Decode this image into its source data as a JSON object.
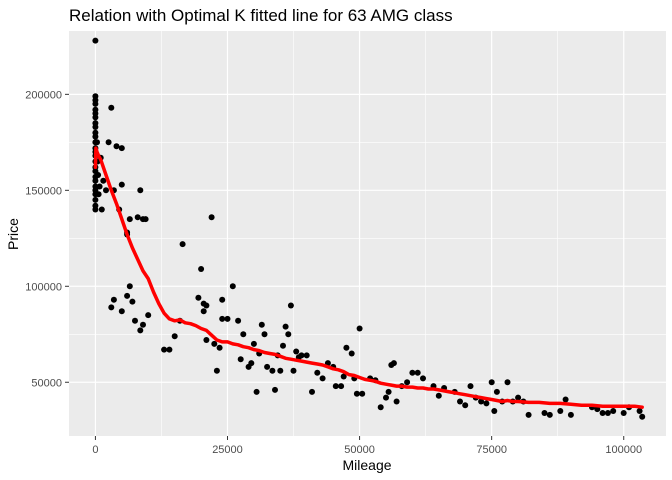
{
  "chart_data": {
    "type": "scatter",
    "title": "Relation with Optimal K fitted line for 63 AMG class",
    "xlabel": "Mileage",
    "ylabel": "Price",
    "xlim": [
      -5000,
      108000
    ],
    "ylim": [
      22000,
      233000
    ],
    "x_ticks": [
      0,
      25000,
      50000,
      75000,
      100000
    ],
    "x_tick_labels": [
      "0",
      "25000",
      "50000",
      "75000",
      "100000"
    ],
    "y_ticks": [
      50000,
      100000,
      150000,
      200000
    ],
    "y_tick_labels": [
      "50000",
      "100000",
      "150000",
      "200000"
    ],
    "grid": true,
    "legend": "none",
    "colors": {
      "panel_bg": "#ebebeb",
      "grid": "#ffffff",
      "points": "#000000",
      "fit_line": "#ff0000",
      "tick_text": "#4d4d4d",
      "tick_mark": "#333333"
    },
    "series": [
      {
        "type": "scatter",
        "points": [
          [
            0,
            228000
          ],
          [
            0,
            199000
          ],
          [
            0,
            197000
          ],
          [
            0,
            195000
          ],
          [
            0,
            192000
          ],
          [
            0,
            190000
          ],
          [
            0,
            188000
          ],
          [
            0,
            185000
          ],
          [
            0,
            183000
          ],
          [
            0,
            180000
          ],
          [
            0,
            178000
          ],
          [
            0,
            175000
          ],
          [
            0,
            172000
          ],
          [
            0,
            170000
          ],
          [
            0,
            168000
          ],
          [
            0,
            165000
          ],
          [
            0,
            162000
          ],
          [
            0,
            160000
          ],
          [
            0,
            157000
          ],
          [
            0,
            155000
          ],
          [
            0,
            152000
          ],
          [
            0,
            150000
          ],
          [
            0,
            148000
          ],
          [
            0,
            145000
          ],
          [
            0,
            142000
          ],
          [
            0,
            140000
          ],
          [
            300,
            175000
          ],
          [
            400,
            165000
          ],
          [
            500,
            158000
          ],
          [
            600,
            148000
          ],
          [
            800,
            152000
          ],
          [
            1000,
            167000
          ],
          [
            1200,
            140000
          ],
          [
            1500,
            155000
          ],
          [
            2000,
            150000
          ],
          [
            2500,
            175000
          ],
          [
            3000,
            193000
          ],
          [
            3500,
            150000
          ],
          [
            4000,
            173000
          ],
          [
            5000,
            172000
          ],
          [
            5000,
            153000
          ],
          [
            4500,
            140000
          ],
          [
            6000,
            128000
          ],
          [
            6000,
            127000
          ],
          [
            6500,
            135000
          ],
          [
            8000,
            136000
          ],
          [
            8500,
            150000
          ],
          [
            9000,
            135000
          ],
          [
            9500,
            135000
          ],
          [
            3000,
            89000
          ],
          [
            3500,
            93000
          ],
          [
            5000,
            87000
          ],
          [
            6000,
            95000
          ],
          [
            6500,
            100000
          ],
          [
            7000,
            92000
          ],
          [
            7500,
            82000
          ],
          [
            8500,
            77000
          ],
          [
            9000,
            80000
          ],
          [
            10000,
            85000
          ],
          [
            13000,
            67000
          ],
          [
            14000,
            67000
          ],
          [
            15000,
            74000
          ],
          [
            16000,
            82000
          ],
          [
            16500,
            122000
          ],
          [
            19500,
            94000
          ],
          [
            20000,
            109000
          ],
          [
            20500,
            91000
          ],
          [
            20500,
            87000
          ],
          [
            21000,
            90000
          ],
          [
            21000,
            72000
          ],
          [
            22000,
            136000
          ],
          [
            22500,
            70000
          ],
          [
            23000,
            56000
          ],
          [
            23500,
            68000
          ],
          [
            24000,
            93000
          ],
          [
            24000,
            83000
          ],
          [
            25000,
            83000
          ],
          [
            26000,
            100000
          ],
          [
            27000,
            82000
          ],
          [
            27500,
            62000
          ],
          [
            28000,
            75000
          ],
          [
            29000,
            58000
          ],
          [
            29500,
            60000
          ],
          [
            30000,
            70000
          ],
          [
            30500,
            45000
          ],
          [
            31000,
            65000
          ],
          [
            31500,
            80000
          ],
          [
            32000,
            75000
          ],
          [
            32500,
            58000
          ],
          [
            33500,
            56000
          ],
          [
            34000,
            46000
          ],
          [
            34500,
            64000
          ],
          [
            35000,
            56000
          ],
          [
            35500,
            69000
          ],
          [
            36000,
            79000
          ],
          [
            36500,
            75000
          ],
          [
            37000,
            90000
          ],
          [
            37500,
            56000
          ],
          [
            38000,
            66000
          ],
          [
            38500,
            63000
          ],
          [
            39000,
            64000
          ],
          [
            40000,
            64000
          ],
          [
            41000,
            45000
          ],
          [
            42000,
            55000
          ],
          [
            43000,
            52000
          ],
          [
            44000,
            60000
          ],
          [
            45000,
            58000
          ],
          [
            45500,
            48000
          ],
          [
            46500,
            48000
          ],
          [
            47000,
            53000
          ],
          [
            47500,
            68000
          ],
          [
            48500,
            65000
          ],
          [
            49000,
            52000
          ],
          [
            49500,
            44000
          ],
          [
            50000,
            78000
          ],
          [
            50500,
            44000
          ],
          [
            52000,
            52000
          ],
          [
            53000,
            51000
          ],
          [
            54000,
            37000
          ],
          [
            55000,
            42000
          ],
          [
            55500,
            45000
          ],
          [
            56000,
            59000
          ],
          [
            56500,
            60000
          ],
          [
            57000,
            40000
          ],
          [
            58000,
            48000
          ],
          [
            59000,
            50000
          ],
          [
            60000,
            55000
          ],
          [
            61000,
            55000
          ],
          [
            62000,
            52000
          ],
          [
            64000,
            48000
          ],
          [
            65000,
            43000
          ],
          [
            66000,
            47000
          ],
          [
            68000,
            45000
          ],
          [
            69000,
            40000
          ],
          [
            70000,
            38000
          ],
          [
            71000,
            48000
          ],
          [
            72000,
            42000
          ],
          [
            73000,
            40000
          ],
          [
            74000,
            39000
          ],
          [
            75000,
            50000
          ],
          [
            75500,
            35000
          ],
          [
            76000,
            45000
          ],
          [
            77000,
            40000
          ],
          [
            78000,
            50000
          ],
          [
            79000,
            40000
          ],
          [
            80000,
            42000
          ],
          [
            81000,
            40000
          ],
          [
            82000,
            33000
          ],
          [
            85000,
            34000
          ],
          [
            86000,
            33000
          ],
          [
            88000,
            35000
          ],
          [
            89000,
            41000
          ],
          [
            90000,
            33000
          ],
          [
            94000,
            37000
          ],
          [
            95000,
            36000
          ],
          [
            96000,
            34000
          ],
          [
            97000,
            34000
          ],
          [
            98000,
            35000
          ],
          [
            100000,
            34000
          ],
          [
            101000,
            37000
          ],
          [
            103000,
            35000
          ],
          [
            103500,
            32000
          ]
        ]
      },
      {
        "type": "line",
        "points": [
          [
            0,
            162000
          ],
          [
            100,
            172000
          ],
          [
            300,
            170000
          ],
          [
            600,
            168000
          ],
          [
            1000,
            166000
          ],
          [
            2000,
            158000
          ],
          [
            3000,
            150000
          ],
          [
            4000,
            143000
          ],
          [
            5000,
            135000
          ],
          [
            6000,
            127000
          ],
          [
            7000,
            120000
          ],
          [
            8000,
            114000
          ],
          [
            9000,
            108000
          ],
          [
            10000,
            104000
          ],
          [
            11000,
            97000
          ],
          [
            12000,
            91000
          ],
          [
            13000,
            86000
          ],
          [
            14000,
            83000
          ],
          [
            15000,
            82000
          ],
          [
            16000,
            82500
          ],
          [
            17000,
            81000
          ],
          [
            18000,
            80500
          ],
          [
            19000,
            79500
          ],
          [
            20000,
            78000
          ],
          [
            21000,
            77000
          ],
          [
            22000,
            74500
          ],
          [
            23000,
            72000
          ],
          [
            24000,
            71000
          ],
          [
            25000,
            71000
          ],
          [
            26000,
            70000
          ],
          [
            27000,
            69500
          ],
          [
            28000,
            68500
          ],
          [
            29000,
            68000
          ],
          [
            30000,
            67000
          ],
          [
            31000,
            66500
          ],
          [
            32000,
            65500
          ],
          [
            33000,
            65000
          ],
          [
            34000,
            64500
          ],
          [
            35000,
            63500
          ],
          [
            36000,
            62500
          ],
          [
            37000,
            62000
          ],
          [
            38000,
            61500
          ],
          [
            39000,
            61000
          ],
          [
            40000,
            60500
          ],
          [
            41000,
            60000
          ],
          [
            42000,
            59500
          ],
          [
            43000,
            59000
          ],
          [
            44000,
            58000
          ],
          [
            45000,
            57000
          ],
          [
            46000,
            56500
          ],
          [
            47000,
            55500
          ],
          [
            48000,
            54000
          ],
          [
            49000,
            53500
          ],
          [
            50000,
            52500
          ],
          [
            51000,
            51500
          ],
          [
            52000,
            51000
          ],
          [
            53000,
            50500
          ],
          [
            54000,
            49500
          ],
          [
            55000,
            49000
          ],
          [
            56000,
            48500
          ],
          [
            57000,
            48000
          ],
          [
            58000,
            48000
          ],
          [
            59000,
            47500
          ],
          [
            60000,
            47500
          ],
          [
            61000,
            47000
          ],
          [
            62000,
            47000
          ],
          [
            63000,
            46500
          ],
          [
            64000,
            46500
          ],
          [
            65000,
            46000
          ],
          [
            66000,
            45500
          ],
          [
            67000,
            45000
          ],
          [
            68000,
            44500
          ],
          [
            69000,
            44000
          ],
          [
            70000,
            43500
          ],
          [
            71000,
            43000
          ],
          [
            72000,
            42500
          ],
          [
            73000,
            42000
          ],
          [
            74000,
            41500
          ],
          [
            75000,
            41000
          ],
          [
            76000,
            40500
          ],
          [
            77000,
            40000
          ],
          [
            78000,
            40500
          ],
          [
            79000,
            40000
          ],
          [
            80000,
            40000
          ],
          [
            82000,
            39500
          ],
          [
            84000,
            39500
          ],
          [
            86000,
            39000
          ],
          [
            88000,
            39000
          ],
          [
            90000,
            38500
          ],
          [
            92000,
            38000
          ],
          [
            94000,
            38000
          ],
          [
            96000,
            37500
          ],
          [
            98000,
            37500
          ],
          [
            100000,
            37500
          ],
          [
            102000,
            37500
          ],
          [
            103500,
            37000
          ]
        ]
      }
    ]
  }
}
